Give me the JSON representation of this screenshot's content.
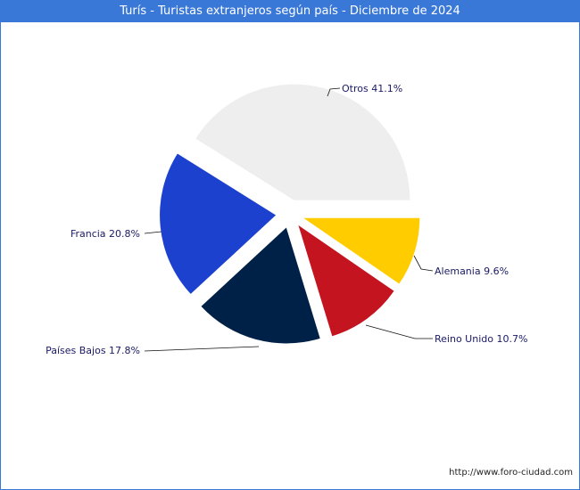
{
  "chart_data": {
    "type": "pie",
    "title": "Turís - Turistas extranjeros según país - Diciembre de 2024",
    "slices": [
      {
        "label": "Otros",
        "value": 41.1,
        "display": "Otros 41.1%",
        "color": "#eeeeee"
      },
      {
        "label": "Alemania",
        "value": 9.6,
        "display": "Alemania 9.6%",
        "color": "#ffcc00"
      },
      {
        "label": "Reino Unido",
        "value": 10.7,
        "display": "Reino Unido 10.7%",
        "color": "#c41420"
      },
      {
        "label": "Países Bajos",
        "value": 17.8,
        "display": "Países Bajos 17.8%",
        "color": "#002147"
      },
      {
        "label": "Francia",
        "value": 20.8,
        "display": "Francia 20.8%",
        "color": "#1c41ce"
      }
    ]
  },
  "footer": {
    "source": "http://www.foro-ciudad.com"
  }
}
